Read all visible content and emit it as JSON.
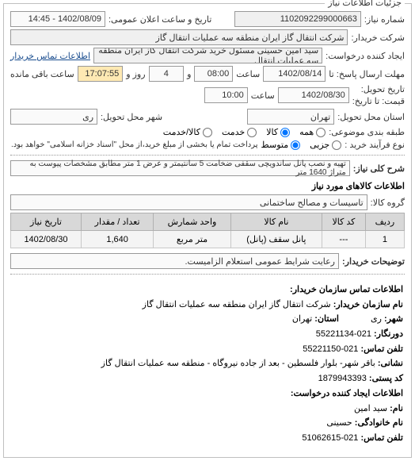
{
  "panel_title": "جزئیات اطلاعات نیاز",
  "need_number_label": "شماره نیاز:",
  "need_number": "1102092299000663",
  "announce_label": "تاریخ و ساعت اعلان عمومی:",
  "announce_value": "1402/08/09 - 14:45",
  "buyer_label": "شرکت خریدار:",
  "buyer_value": "شرکت انتقال گاز ایران منطقه سه عملیات انتقال گاز",
  "creator_label": "ایجاد کننده درخواست:",
  "creator_value": "سید امین حسینی مسئول خرید شرکت انتقال گاز ایران منطقه سه عملیات انتقال",
  "buyer_contact_link": "اطلاعات تماس خریدار",
  "deadline_to_label": "مهلت ارسال پاسخ: تا",
  "deadline_date": "1402/08/14",
  "deadline_hour_label": "ساعت",
  "deadline_hour": "08:00",
  "deadline_sep": "و",
  "deadline_days": "4",
  "deadline_days_label": "روز و",
  "deadline_time": "17:07:55",
  "deadline_remain_label": "ساعت باقی مانده",
  "delivery_times_label": "تاریخ تحویل:",
  "price_to_label": "قیمت: تا تاریخ:",
  "delivery_date": "1402/08/30",
  "delivery_hour_label": "ساعت",
  "delivery_hour": "10:00",
  "delivery_province_label": "استان محل تحویل:",
  "delivery_province": "تهران",
  "delivery_city_label": "شهر محل تحویل:",
  "delivery_city": "ری",
  "grouping_label": "طبقه بندی موضوعی:",
  "grouping_options": {
    "all": "همه",
    "goods": "کالا",
    "service": "خدمت",
    "goods_service": "کالا/خدمت"
  },
  "buy_type_label": "نوع فرآیند خرید :",
  "buy_type_options": {
    "partial": "جزیی",
    "medium": "متوسط"
  },
  "buy_type_note": "پرداخت تمام یا بخشی از مبلغ خرید،از محل \"اسناد خزانه اسلامی\" خواهد بود.",
  "need_desc_label": "شرح کلی نیاز:",
  "need_desc": "تهیه و نصب پانل ساندویچی سقفی ضخامت 5 سانتیمتر و عرض 1 متر مطابق مشخصات پیوست به متراژ 1640 متر",
  "goods_info_label": "اطلاعات کالاهای مورد نیاز",
  "goods_group_label": "گروه کالا:",
  "goods_group": "تاسیسات و مصالح ساختمانی",
  "table": {
    "headers": [
      "ردیف",
      "کد کالا",
      "نام کالا",
      "واحد شمارش",
      "تعداد / مقدار",
      "تاریخ نیاز"
    ],
    "rows": [
      [
        "1",
        "---",
        "پانل سقف (پانل)",
        "متر مربع",
        "1,640",
        "1402/08/30"
      ]
    ]
  },
  "buyer_notes_label": "توضیحات خریدار:",
  "buyer_notes": "رعایت شرایط عمومی استعلام الزامیست.",
  "contact_header": "اطلاعات تماس سازمان خریدار:",
  "org_name_label": "نام سازمان خریدار:",
  "org_name": "شرکت انتقال گاز ایران منطقه سه عملیات انتقال گاز",
  "city_label": "شهر:",
  "city": "ری",
  "province_label": "استان:",
  "province": "تهران",
  "fax_label": "دورنگار:",
  "fax": "021-55221134",
  "phone_label": "تلفن تماس:",
  "phone": "021-55221150",
  "address_label": "نشانی:",
  "address": "باقر شهر- بلوار فلسطین - بعد از جاده نیروگاه - منطقه سه عملیات انتقال گاز",
  "postcode_label": "کد پستی:",
  "postcode": "1879943393",
  "creator2_label": "اطلاعات ایجاد کننده درخواست:",
  "name_label": "نام:",
  "name_value": "سید امین",
  "family_label": "نام خانوادگی:",
  "family_value": "حسینی",
  "phone2_label": "تلفن تماس:",
  "phone2": "021-51062615"
}
